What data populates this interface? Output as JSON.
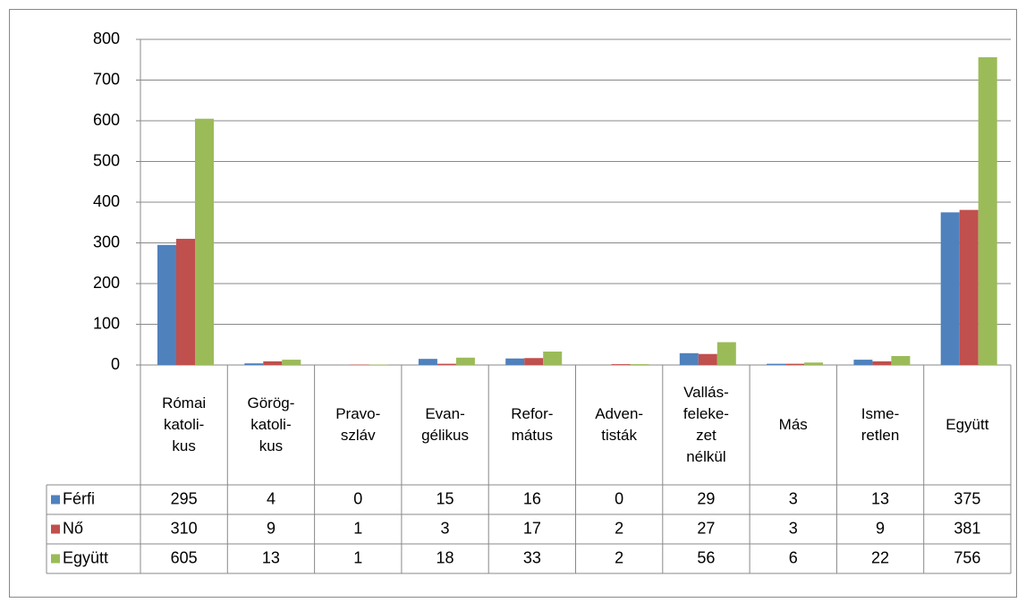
{
  "chart_data": {
    "type": "bar",
    "categories": [
      "Római\nkatoli-\nkus",
      "Görög-\nkatoli-\nkus",
      "Pravo-\nszláv",
      "Evan-\ngélikus",
      "Refor-\nmátus",
      "Adven-\ntisták",
      "Vallás-\nfeleke-\nzet\nnélkül",
      "Más",
      "Isme-\nretlen",
      "Együtt"
    ],
    "series": [
      {
        "name": "Férfi",
        "color": "#4f81bd",
        "values": [
          295,
          4,
          0,
          15,
          16,
          0,
          29,
          3,
          13,
          375
        ]
      },
      {
        "name": "Nő",
        "color": "#c0504d",
        "values": [
          310,
          9,
          1,
          3,
          17,
          2,
          27,
          3,
          9,
          381
        ]
      },
      {
        "name": "Együtt",
        "color": "#9bbb59",
        "values": [
          605,
          13,
          1,
          18,
          33,
          2,
          56,
          6,
          22,
          756
        ]
      }
    ],
    "ylim": [
      0,
      800
    ],
    "yticks": [
      0,
      100,
      200,
      300,
      400,
      500,
      600,
      700,
      800
    ],
    "grid": true
  }
}
